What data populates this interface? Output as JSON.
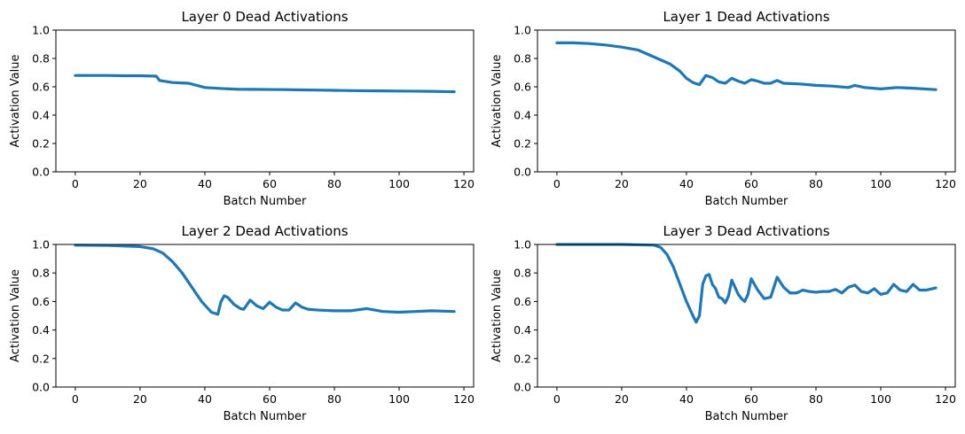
{
  "chart_data": [
    {
      "type": "line",
      "title": "Layer 0 Dead Activations",
      "xlabel": "Batch Number",
      "ylabel": "Activation Value",
      "xlim": [
        -6,
        123
      ],
      "ylim": [
        0,
        1
      ],
      "xticks": [
        0,
        20,
        40,
        60,
        80,
        100,
        120
      ],
      "yticks": [
        0.0,
        0.2,
        0.4,
        0.6,
        0.8,
        1.0
      ],
      "grid": false,
      "series": [
        {
          "color": "#1f77b4",
          "x": [
            0,
            5,
            10,
            15,
            20,
            25,
            26,
            30,
            35,
            40,
            45,
            50,
            55,
            60,
            65,
            70,
            75,
            80,
            85,
            90,
            95,
            100,
            105,
            110,
            117
          ],
          "y": [
            0.68,
            0.68,
            0.68,
            0.678,
            0.678,
            0.675,
            0.645,
            0.63,
            0.625,
            0.595,
            0.588,
            0.583,
            0.582,
            0.581,
            0.58,
            0.578,
            0.577,
            0.575,
            0.573,
            0.572,
            0.571,
            0.57,
            0.569,
            0.568,
            0.565
          ]
        }
      ]
    },
    {
      "type": "line",
      "title": "Layer 1 Dead Activations",
      "xlabel": "Batch Number",
      "ylabel": "Activation Value",
      "xlim": [
        -6,
        123
      ],
      "ylim": [
        0,
        1
      ],
      "xticks": [
        0,
        20,
        40,
        60,
        80,
        100,
        120
      ],
      "yticks": [
        0.0,
        0.2,
        0.4,
        0.6,
        0.8,
        1.0
      ],
      "grid": false,
      "series": [
        {
          "color": "#1f77b4",
          "x": [
            0,
            5,
            10,
            15,
            20,
            25,
            30,
            35,
            38,
            40,
            42,
            44,
            46,
            48,
            50,
            52,
            54,
            56,
            58,
            60,
            62,
            64,
            66,
            68,
            70,
            75,
            80,
            85,
            90,
            92,
            95,
            100,
            105,
            110,
            117
          ],
          "y": [
            0.91,
            0.91,
            0.905,
            0.895,
            0.88,
            0.86,
            0.81,
            0.76,
            0.71,
            0.66,
            0.63,
            0.615,
            0.68,
            0.665,
            0.635,
            0.625,
            0.66,
            0.64,
            0.625,
            0.65,
            0.64,
            0.625,
            0.625,
            0.645,
            0.625,
            0.62,
            0.61,
            0.605,
            0.595,
            0.61,
            0.595,
            0.585,
            0.595,
            0.59,
            0.58
          ]
        }
      ]
    },
    {
      "type": "line",
      "title": "Layer 2 Dead Activations",
      "xlabel": "Batch Number",
      "ylabel": "Activation Value",
      "xlim": [
        -6,
        123
      ],
      "ylim": [
        0,
        1
      ],
      "xticks": [
        0,
        20,
        40,
        60,
        80,
        100,
        120
      ],
      "yticks": [
        0.0,
        0.2,
        0.4,
        0.6,
        0.8,
        1.0
      ],
      "grid": false,
      "series": [
        {
          "color": "#1f77b4",
          "x": [
            0,
            10,
            20,
            24,
            27,
            30,
            33,
            36,
            39,
            42,
            44,
            45,
            46,
            47,
            49,
            51,
            52,
            54,
            56,
            58,
            60,
            62,
            64,
            66,
            68,
            70,
            72,
            75,
            80,
            85,
            90,
            95,
            100,
            105,
            110,
            117
          ],
          "y": [
            0.995,
            0.993,
            0.985,
            0.97,
            0.94,
            0.88,
            0.8,
            0.7,
            0.6,
            0.525,
            0.51,
            0.6,
            0.64,
            0.63,
            0.58,
            0.55,
            0.545,
            0.61,
            0.57,
            0.55,
            0.595,
            0.56,
            0.54,
            0.54,
            0.59,
            0.56,
            0.545,
            0.54,
            0.535,
            0.535,
            0.55,
            0.53,
            0.525,
            0.53,
            0.535,
            0.53
          ]
        }
      ]
    },
    {
      "type": "line",
      "title": "Layer 3 Dead Activations",
      "xlabel": "Batch Number",
      "ylabel": "Activation Value",
      "xlim": [
        -6,
        123
      ],
      "ylim": [
        0,
        1
      ],
      "xticks": [
        0,
        20,
        40,
        60,
        80,
        100,
        120
      ],
      "yticks": [
        0.0,
        0.2,
        0.4,
        0.6,
        0.8,
        1.0
      ],
      "grid": false,
      "series": [
        {
          "color": "#1f77b4",
          "x": [
            0,
            10,
            20,
            30,
            32,
            34,
            36,
            38,
            40,
            42,
            43,
            44,
            45,
            46,
            47,
            48,
            49,
            50,
            51,
            52,
            53,
            54,
            55,
            56,
            57,
            58,
            59,
            60,
            62,
            64,
            66,
            68,
            70,
            72,
            74,
            76,
            78,
            80,
            82,
            84,
            86,
            88,
            90,
            92,
            94,
            96,
            98,
            100,
            102,
            104,
            106,
            108,
            110,
            112,
            114,
            117
          ],
          "y": [
            1.0,
            1.0,
            1.0,
            0.995,
            0.98,
            0.93,
            0.84,
            0.72,
            0.6,
            0.5,
            0.455,
            0.5,
            0.72,
            0.78,
            0.79,
            0.72,
            0.69,
            0.63,
            0.62,
            0.59,
            0.64,
            0.75,
            0.7,
            0.65,
            0.62,
            0.6,
            0.65,
            0.76,
            0.68,
            0.62,
            0.63,
            0.77,
            0.7,
            0.66,
            0.66,
            0.68,
            0.67,
            0.665,
            0.67,
            0.67,
            0.685,
            0.66,
            0.7,
            0.715,
            0.67,
            0.66,
            0.69,
            0.65,
            0.66,
            0.72,
            0.68,
            0.67,
            0.72,
            0.68,
            0.68,
            0.695
          ]
        }
      ]
    }
  ]
}
